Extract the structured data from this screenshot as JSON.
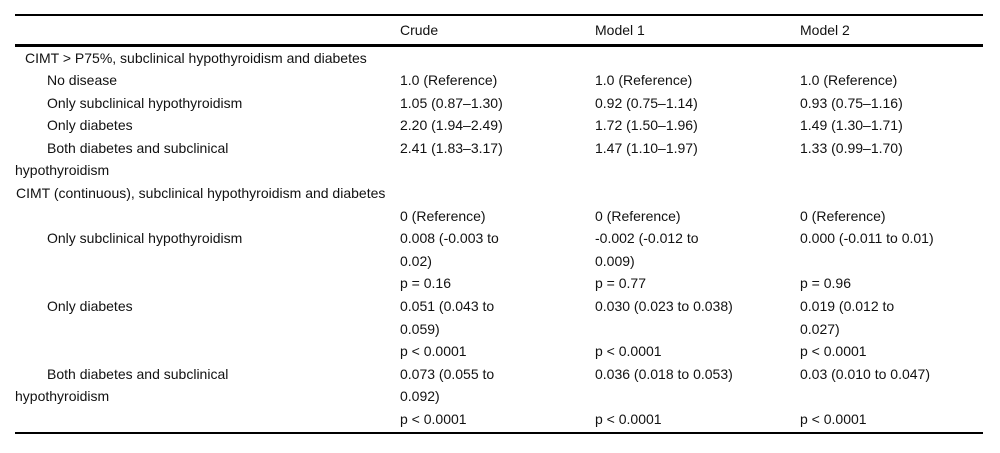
{
  "colors": {
    "background": "#ffffff",
    "text": "#111111",
    "rule": "#000000"
  },
  "table": {
    "columns": [
      "",
      "Crude",
      "Model 1",
      "Model 2"
    ],
    "rows": [
      {
        "type": "section",
        "label": "CIMT > P75%, subclinical hypothyroidism and diabetes"
      },
      {
        "type": "data",
        "label": "No disease",
        "values": [
          "1.0 (Reference)",
          "1.0 (Reference)",
          "1.0 (Reference)"
        ]
      },
      {
        "type": "data",
        "label": "Only subclinical hypothyroidism",
        "values": [
          "1.05 (0.87–1.30)",
          "0.92 (0.75–1.14)",
          "0.93 (0.75–1.16)"
        ]
      },
      {
        "type": "data",
        "label": "Only diabetes",
        "values": [
          "2.20 (1.94–2.49)",
          "1.72 (1.50–1.96)",
          "1.49 (1.30–1.71)"
        ]
      },
      {
        "type": "data",
        "label": "Both diabetes and subclinical\nhypothyroidism",
        "values": [
          "2.41 (1.83–3.17)",
          "1.47 (1.10–1.97)",
          "1.33 (0.99–1.70)"
        ]
      },
      {
        "type": "section",
        "label": "CIMT (continuous), subclinical hypothyroidism and diabetes"
      },
      {
        "type": "data",
        "label": "",
        "values": [
          "0 (Reference)",
          "0 (Reference)",
          "0 (Reference)"
        ]
      },
      {
        "type": "data",
        "label": "Only subclinical hypothyroidism",
        "values": [
          "0.008 (-0.003 to\n0.02)",
          "-0.002 (-0.012 to\n0.009)",
          "0.000 (-0.011 to 0.01)"
        ]
      },
      {
        "type": "data",
        "label": "",
        "values": [
          "p = 0.16",
          "p = 0.77",
          "p = 0.96"
        ]
      },
      {
        "type": "data",
        "label": "Only diabetes",
        "values": [
          "0.051 (0.043 to\n0.059)",
          "0.030 (0.023 to 0.038)",
          "0.019 (0.012 to\n0.027)"
        ]
      },
      {
        "type": "data",
        "label": "",
        "values": [
          "p < 0.0001",
          "p < 0.0001",
          "p < 0.0001"
        ]
      },
      {
        "type": "data",
        "label": "Both diabetes and subclinical\nhypothyroidism",
        "values": [
          "0.073 (0.055 to\n0.092)",
          "0.036 (0.018 to 0.053)",
          "0.03 (0.010 to 0.047)"
        ]
      },
      {
        "type": "data",
        "label": "",
        "values": [
          "p < 0.0001",
          "p < 0.0001",
          "p < 0.0001"
        ]
      }
    ]
  }
}
